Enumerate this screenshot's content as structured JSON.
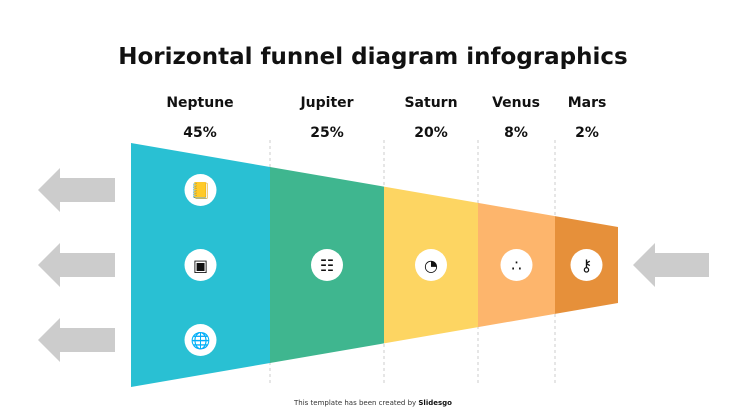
{
  "title": "Horizontal funnel diagram infographics",
  "stages": [
    {
      "name": "Neptune",
      "percent": "45%",
      "color": "#29c0d3",
      "icons": [
        "contact-book-icon",
        "calendar-icon",
        "globe-location-icon"
      ]
    },
    {
      "name": "Jupiter",
      "percent": "25%",
      "color": "#3fb68f",
      "icons": [
        "chat-bubbles-icon"
      ]
    },
    {
      "name": "Saturn",
      "percent": "20%",
      "color": "#fdd562",
      "icons": [
        "person-clock-icon"
      ]
    },
    {
      "name": "Venus",
      "percent": "8%",
      "color": "#fdb56c",
      "icons": [
        "hierarchy-icon"
      ]
    },
    {
      "name": "Mars",
      "percent": "2%",
      "color": "#e6903a",
      "icons": [
        "key-icon"
      ]
    }
  ],
  "arrow_color": "#cccccc",
  "footer": {
    "text": "This template has been created by ",
    "brand": "Slidesgo"
  }
}
